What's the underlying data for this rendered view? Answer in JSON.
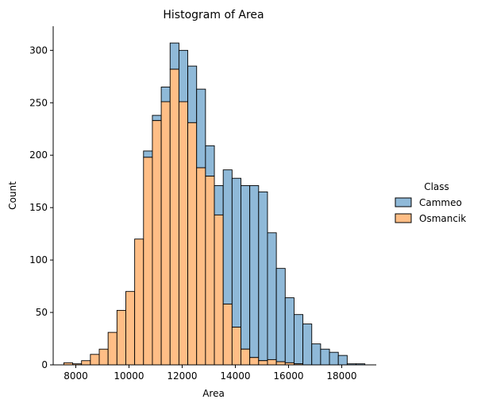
{
  "chart_data": {
    "type": "bar",
    "subtype": "stacked-histogram",
    "title": "Histogram of Area",
    "xlabel": "Area",
    "ylabel": "Count",
    "xlim": [
      7150,
      19300
    ],
    "ylim": [
      0,
      323
    ],
    "xticks": [
      8000,
      10000,
      12000,
      14000,
      16000,
      18000
    ],
    "yticks": [
      0,
      50,
      100,
      150,
      200,
      250,
      300
    ],
    "grid": false,
    "legend": {
      "title": "Class",
      "placement": "right"
    },
    "bin_start": 7550,
    "bin_width": 333,
    "series": [
      {
        "name": "Osmancik",
        "color": "#ffbe86",
        "values": [
          2,
          1,
          4,
          10,
          15,
          31,
          52,
          70,
          120,
          198,
          233,
          251,
          282,
          251,
          231,
          188,
          180,
          143,
          58,
          36,
          15,
          7,
          4,
          5,
          3,
          2,
          1,
          0,
          0,
          0,
          0,
          0,
          0,
          0
        ]
      },
      {
        "name": "Cammeo",
        "color": "#8fb9d8",
        "values": [
          0,
          0,
          0,
          0,
          0,
          0,
          0,
          0,
          0,
          0,
          0,
          0,
          0,
          0,
          0,
          0,
          0,
          0,
          0,
          0,
          0,
          0,
          0,
          0,
          0,
          0,
          0,
          0,
          0,
          0,
          0,
          0,
          0,
          0
        ],
        "totals": [
          2,
          1,
          4,
          10,
          15,
          31,
          52,
          70,
          120,
          204,
          238,
          265,
          307,
          300,
          285,
          263,
          209,
          171,
          186,
          178,
          171,
          171,
          165,
          126,
          92,
          64,
          48,
          39,
          20,
          15,
          12,
          9,
          1,
          1
        ]
      }
    ]
  }
}
